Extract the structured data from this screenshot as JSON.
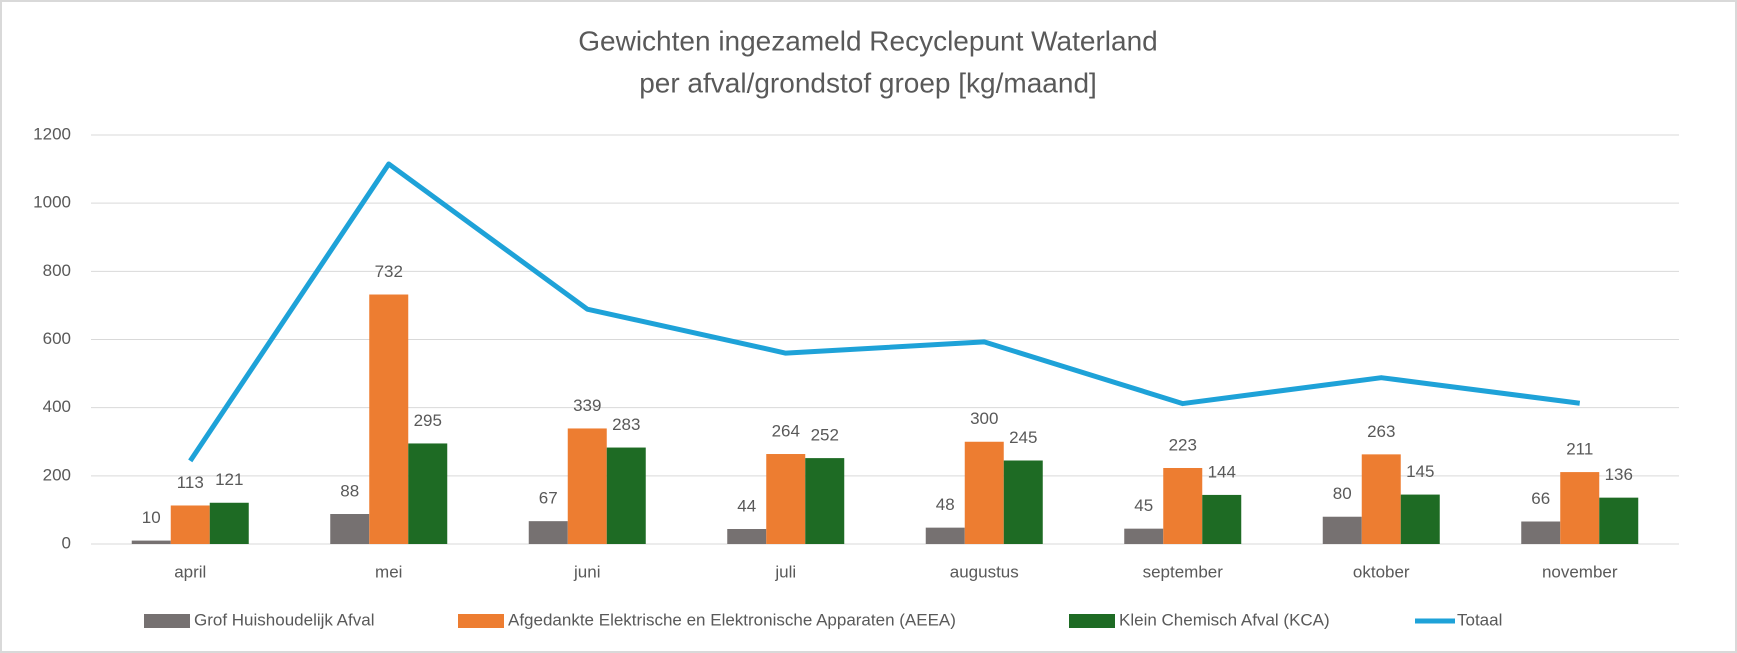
{
  "chart_data": {
    "type": "bar",
    "title": [
      "Gewichten ingezameld Recyclepunt Waterland",
      "per afval/grondstof groep [kg/maand]"
    ],
    "categories": [
      "april",
      "mei",
      "juni",
      "juli",
      "augustus",
      "september",
      "oktober",
      "november"
    ],
    "series": [
      {
        "name": "Grof Huishoudelijk Afval",
        "type": "bar",
        "color": "#767171",
        "data_labels": true,
        "values": [
          10,
          88,
          67,
          44,
          48,
          45,
          80,
          66
        ]
      },
      {
        "name": "Afgedankte Elektrische en Elektronische Apparaten (AEEA)",
        "type": "bar",
        "color": "#ed7d31",
        "data_labels": true,
        "values": [
          113,
          732,
          339,
          264,
          300,
          223,
          263,
          211
        ]
      },
      {
        "name": "Klein Chemisch Afval (KCA)",
        "type": "bar",
        "color": "#1e6b24",
        "data_labels": true,
        "values": [
          121,
          295,
          283,
          252,
          245,
          144,
          145,
          136
        ]
      },
      {
        "name": "Totaal",
        "type": "line",
        "color": "#1ea2d8",
        "data_labels": false,
        "values": [
          244,
          1115,
          689,
          560,
          593,
          412,
          488,
          413
        ]
      }
    ],
    "ylim": [
      0,
      1200
    ],
    "yticks": [
      0,
      200,
      400,
      600,
      800,
      1000,
      1200
    ],
    "grid": true,
    "legend": "bottom"
  }
}
